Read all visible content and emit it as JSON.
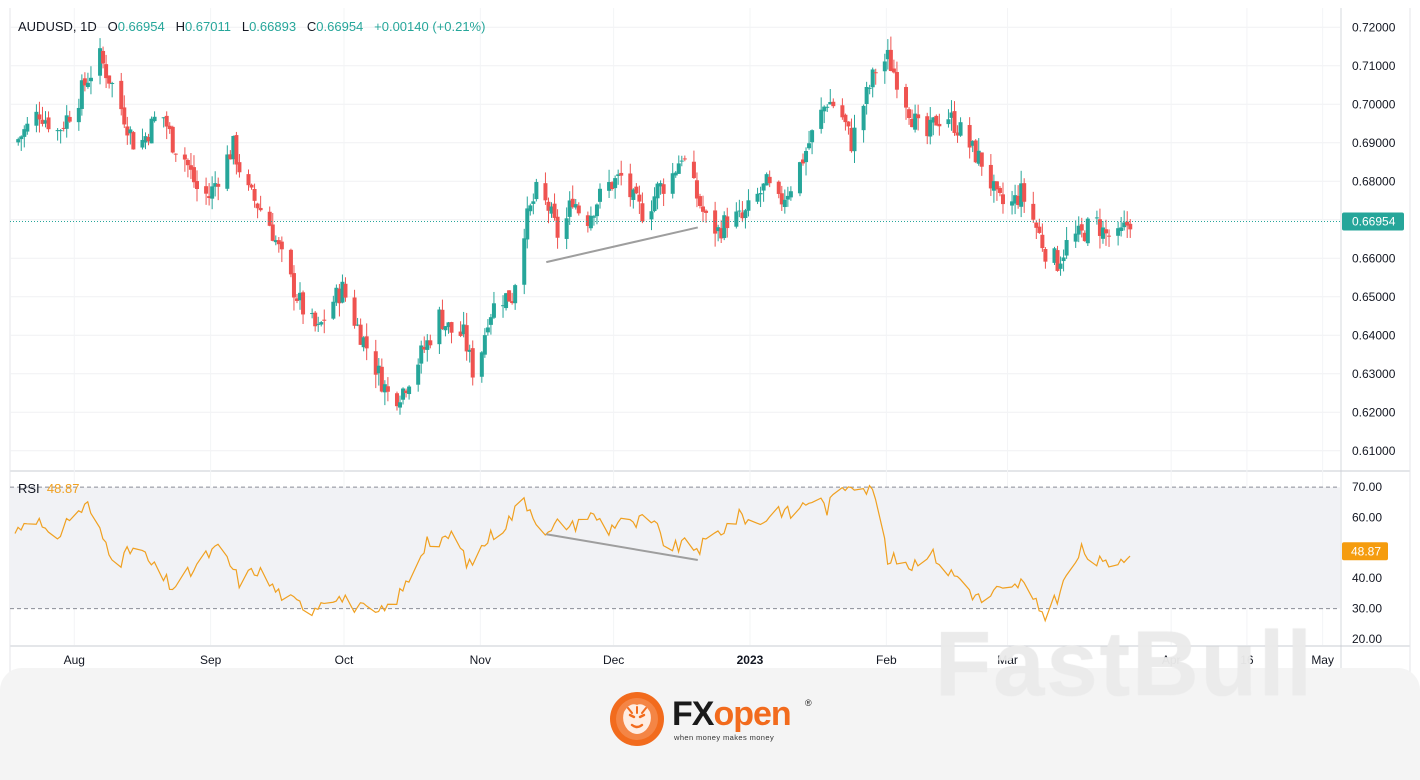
{
  "legend": {
    "symbol": "AUDUSD, 1D",
    "o_label": "O",
    "o_value": "0.66954",
    "h_label": "H",
    "h_value": "0.67011",
    "l_label": "L",
    "l_value": "0.66893",
    "c_label": "C",
    "c_value": "0.66954",
    "change": "+0.00140 (+0.21%)"
  },
  "rsi_legend": {
    "label": "RSI",
    "value": "48.87"
  },
  "colors": {
    "up": "#26a69a",
    "down": "#ef5350",
    "rsi": "#f0a020",
    "trendline": "#9e9e9e",
    "price_tag": "#26a69a",
    "rsi_tag": "#f59c0e"
  },
  "chart_data": [
    {
      "type": "candlestick",
      "title": "",
      "ylim": [
        0.605,
        0.725
      ],
      "y_ticks": [
        "0.72000",
        "0.71000",
        "0.70000",
        "0.69000",
        "0.68000",
        "0.67000",
        "0.66000",
        "0.65000",
        "0.64000",
        "0.63000",
        "0.62000",
        "0.61000"
      ],
      "y_tick_values": [
        0.72,
        0.71,
        0.7,
        0.69,
        0.68,
        0.67,
        0.66,
        0.65,
        0.64,
        0.63,
        0.62,
        0.61
      ],
      "x_labels": [
        "Aug",
        "Sep",
        "Oct",
        "Nov",
        "Dec",
        "2023",
        "Feb",
        "Mar",
        "Apr",
        "16",
        "May"
      ],
      "last_price": 0.66954,
      "last_price_label": "0.66954",
      "close_anchors": [
        [
          0,
          0.69
        ],
        [
          8,
          0.698
        ],
        [
          14,
          0.693
        ],
        [
          20,
          0.7
        ],
        [
          24,
          0.707
        ],
        [
          28,
          0.712
        ],
        [
          32,
          0.705
        ],
        [
          36,
          0.697
        ],
        [
          40,
          0.688
        ],
        [
          44,
          0.693
        ],
        [
          48,
          0.699
        ],
        [
          52,
          0.69
        ],
        [
          56,
          0.686
        ],
        [
          60,
          0.678
        ],
        [
          64,
          0.676
        ],
        [
          68,
          0.683
        ],
        [
          72,
          0.689
        ],
        [
          76,
          0.678
        ],
        [
          80,
          0.674
        ],
        [
          84,
          0.669
        ],
        [
          88,
          0.66
        ],
        [
          92,
          0.652
        ],
        [
          96,
          0.645
        ],
        [
          100,
          0.641
        ],
        [
          104,
          0.648
        ],
        [
          108,
          0.652
        ],
        [
          112,
          0.644
        ],
        [
          116,
          0.637
        ],
        [
          120,
          0.63
        ],
        [
          124,
          0.623
        ],
        [
          128,
          0.626
        ],
        [
          132,
          0.632
        ],
        [
          136,
          0.638
        ],
        [
          140,
          0.645
        ],
        [
          144,
          0.641
        ],
        [
          148,
          0.64
        ],
        [
          152,
          0.628
        ],
        [
          156,
          0.645
        ],
        [
          160,
          0.65
        ],
        [
          164,
          0.65
        ],
        [
          168,
          0.668
        ],
        [
          172,
          0.677
        ],
        [
          176,
          0.673
        ],
        [
          180,
          0.664
        ],
        [
          184,
          0.676
        ],
        [
          188,
          0.669
        ],
        [
          192,
          0.675
        ],
        [
          196,
          0.679
        ],
        [
          200,
          0.681
        ],
        [
          204,
          0.675
        ],
        [
          208,
          0.671
        ],
        [
          212,
          0.678
        ],
        [
          216,
          0.68
        ],
        [
          220,
          0.687
        ],
        [
          224,
          0.678
        ],
        [
          228,
          0.67
        ],
        [
          232,
          0.667
        ],
        [
          236,
          0.671
        ],
        [
          240,
          0.67
        ],
        [
          244,
          0.675
        ],
        [
          248,
          0.679
        ],
        [
          252,
          0.674
        ],
        [
          256,
          0.679
        ],
        [
          260,
          0.686
        ],
        [
          264,
          0.694
        ],
        [
          268,
          0.701
        ],
        [
          272,
          0.699
        ],
        [
          276,
          0.69
        ],
        [
          280,
          0.7
        ],
        [
          284,
          0.709
        ],
        [
          288,
          0.712
        ],
        [
          292,
          0.705
        ],
        [
          296,
          0.697
        ],
        [
          300,
          0.69
        ],
        [
          304,
          0.696
        ],
        [
          308,
          0.697
        ],
        [
          312,
          0.693
        ],
        [
          316,
          0.688
        ],
        [
          320,
          0.684
        ],
        [
          324,
          0.675
        ],
        [
          328,
          0.673
        ],
        [
          332,
          0.677
        ],
        [
          336,
          0.67
        ],
        [
          340,
          0.662
        ],
        [
          344,
          0.659
        ],
        [
          348,
          0.665
        ],
        [
          352,
          0.666
        ],
        [
          356,
          0.67
        ],
        [
          360,
          0.666
        ],
        [
          364,
          0.665
        ],
        [
          368,
          0.67
        ]
      ],
      "trendline": [
        [
          176,
          0.659
        ],
        [
          226,
          0.668
        ]
      ]
    },
    {
      "type": "line",
      "title": "",
      "series": [
        {
          "values_anchors": [
            [
              0,
              55
            ],
            [
              6,
              62
            ],
            [
              12,
              51
            ],
            [
              18,
              60
            ],
            [
              24,
              64
            ],
            [
              28,
              55
            ],
            [
              34,
              45
            ],
            [
              40,
              51
            ],
            [
              46,
              43
            ],
            [
              52,
              37
            ],
            [
              58,
              42
            ],
            [
              64,
              48
            ],
            [
              68,
              50
            ],
            [
              74,
              39
            ],
            [
              80,
              43
            ],
            [
              86,
              36
            ],
            [
              92,
              32
            ],
            [
              98,
              30
            ],
            [
              104,
              35
            ],
            [
              110,
              32
            ],
            [
              116,
              29
            ],
            [
              120,
              28
            ],
            [
              124,
              31
            ],
            [
              128,
              36
            ],
            [
              132,
              44
            ],
            [
              136,
              53
            ],
            [
              140,
              50
            ],
            [
              144,
              55
            ],
            [
              150,
              44
            ],
            [
              156,
              53
            ],
            [
              162,
              58
            ],
            [
              168,
              66
            ],
            [
              172,
              60
            ],
            [
              176,
              54
            ],
            [
              180,
              59
            ],
            [
              184,
              57
            ],
            [
              188,
              61
            ],
            [
              192,
              60
            ],
            [
              196,
              56
            ],
            [
              200,
              60
            ],
            [
              204,
              57
            ],
            [
              208,
              60
            ],
            [
              212,
              56
            ],
            [
              216,
              49
            ],
            [
              220,
              51
            ],
            [
              226,
              50
            ],
            [
              232,
              55
            ],
            [
              236,
              58
            ],
            [
              240,
              61
            ],
            [
              244,
              57
            ],
            [
              248,
              60
            ],
            [
              252,
              63
            ],
            [
              256,
              61
            ],
            [
              260,
              64
            ],
            [
              264,
              67
            ],
            [
              268,
              63
            ],
            [
              272,
              69
            ],
            [
              276,
              72
            ],
            [
              280,
              70
            ],
            [
              284,
              68
            ],
            [
              288,
              45
            ],
            [
              292,
              47
            ],
            [
              296,
              44
            ],
            [
              300,
              49
            ],
            [
              304,
              47
            ],
            [
              308,
              42
            ],
            [
              312,
              40
            ],
            [
              316,
              35
            ],
            [
              320,
              32
            ],
            [
              324,
              36
            ],
            [
              328,
              35
            ],
            [
              332,
              39
            ],
            [
              336,
              32
            ],
            [
              340,
              28
            ],
            [
              344,
              34
            ],
            [
              348,
              42
            ],
            [
              352,
              49
            ],
            [
              356,
              46
            ],
            [
              360,
              44
            ],
            [
              364,
              46
            ],
            [
              368,
              49
            ]
          ]
        }
      ],
      "ylim": [
        18,
        75
      ],
      "y_ticks": [
        "70.00",
        "60.00",
        "50.00",
        "40.00",
        "30.00",
        "20.00"
      ],
      "y_tick_values": [
        70,
        60,
        50,
        40,
        30,
        20
      ],
      "band": [
        30,
        70
      ],
      "last_value": 48.87,
      "last_value_label": "48.87",
      "trendline": [
        [
          176,
          54.5
        ],
        [
          226,
          46
        ]
      ]
    }
  ],
  "logo": {
    "word_left": "FX",
    "word_right": "open",
    "reg": "®",
    "tagline": "when money makes money"
  },
  "watermark": "FastBull"
}
